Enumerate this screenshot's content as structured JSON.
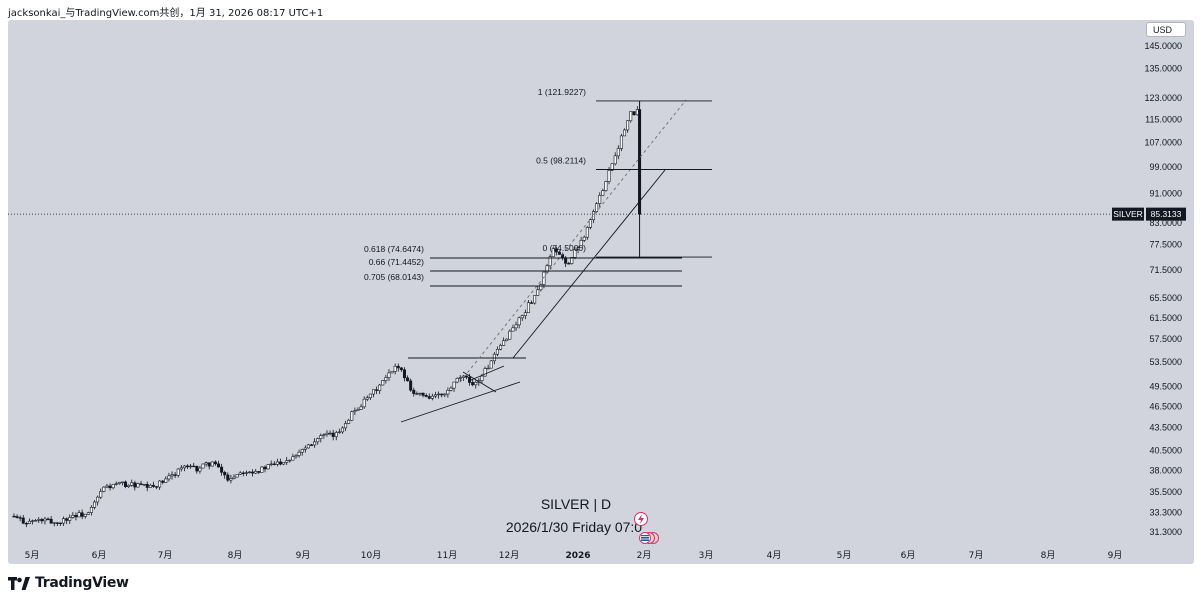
{
  "header": {
    "text": "jacksonkai_与TradingView.com共创，1月 31, 2026 08:17 UTC+1"
  },
  "currency": "USD",
  "brand": {
    "name": "TradingView"
  },
  "symbol_label": "SILVER",
  "current_price": "85.3133",
  "watermark": {
    "title": "SILVER | D",
    "datetime": "2026/1/30 Friday 07:0"
  },
  "colors": {
    "panel": "#d1d4dc",
    "candle_up": "#ffffff",
    "candle_down": "#131722",
    "line": "#131722",
    "fib": "#131722"
  },
  "chart_data": {
    "type": "candlestick",
    "title": "SILVER | D",
    "y_scale": "log",
    "y_ticks": [
      "145.0000",
      "135.0000",
      "123.0000",
      "115.0000",
      "107.0000",
      "99.0000",
      "91.0000",
      "83.0000",
      "77.5000",
      "71.5000",
      "65.5000",
      "61.5000",
      "57.5000",
      "53.5000",
      "49.5000",
      "46.5000",
      "43.5000",
      "40.5000",
      "38.0000",
      "35.5000",
      "33.3000",
      "31.3000"
    ],
    "x_ticks": [
      "5月",
      "6月",
      "7月",
      "8月",
      "9月",
      "10月",
      "11月",
      "12月",
      "2026",
      "2月",
      "3月",
      "4月",
      "5月",
      "6月",
      "7月",
      "8月",
      "9月"
    ],
    "fib_levels": [
      {
        "label": "1 (121.9227)",
        "value": 121.9227
      },
      {
        "label": "0.5 (98.2114)",
        "value": 98.2114
      },
      {
        "label": "0 (74.5000)",
        "value": 74.5
      }
    ],
    "fib_extensions": [
      {
        "label": "0.618 (74.6474)",
        "value": 74.6474
      },
      {
        "label": "0.66 (71.4452)",
        "value": 71.4452
      },
      {
        "label": "0.705 (68.0143)",
        "value": 68.0143
      }
    ],
    "last_price": 85.3133,
    "closes": [
      {
        "d": "2025-04-21",
        "c": 32.9
      },
      {
        "d": "2025-04-28",
        "c": 32.3
      },
      {
        "d": "2025-05-05",
        "c": 32.5
      },
      {
        "d": "2025-05-12",
        "c": 32.2
      },
      {
        "d": "2025-05-19",
        "c": 33.0
      },
      {
        "d": "2025-05-26",
        "c": 33.1
      },
      {
        "d": "2025-06-02",
        "c": 36.0
      },
      {
        "d": "2025-06-09",
        "c": 36.4
      },
      {
        "d": "2025-06-16",
        "c": 36.3
      },
      {
        "d": "2025-06-23",
        "c": 36.0
      },
      {
        "d": "2025-06-30",
        "c": 36.8
      },
      {
        "d": "2025-07-07",
        "c": 38.4
      },
      {
        "d": "2025-07-14",
        "c": 38.2
      },
      {
        "d": "2025-07-21",
        "c": 39.0
      },
      {
        "d": "2025-07-28",
        "c": 37.0
      },
      {
        "d": "2025-08-04",
        "c": 38.0
      },
      {
        "d": "2025-08-11",
        "c": 38.0
      },
      {
        "d": "2025-08-18",
        "c": 38.8
      },
      {
        "d": "2025-08-25",
        "c": 39.5
      },
      {
        "d": "2025-09-01",
        "c": 41.0
      },
      {
        "d": "2025-09-08",
        "c": 42.3
      },
      {
        "d": "2025-09-15",
        "c": 42.5
      },
      {
        "d": "2025-09-22",
        "c": 45.5
      },
      {
        "d": "2025-09-29",
        "c": 47.6
      },
      {
        "d": "2025-10-06",
        "c": 50.2
      },
      {
        "d": "2025-10-13",
        "c": 53.0
      },
      {
        "d": "2025-10-20",
        "c": 48.5
      },
      {
        "d": "2025-10-27",
        "c": 48.0
      },
      {
        "d": "2025-11-03",
        "c": 48.2
      },
      {
        "d": "2025-11-10",
        "c": 51.0
      },
      {
        "d": "2025-11-17",
        "c": 50.0
      },
      {
        "d": "2025-11-24",
        "c": 53.5
      },
      {
        "d": "2025-12-01",
        "c": 58.0
      },
      {
        "d": "2025-12-08",
        "c": 62.0
      },
      {
        "d": "2025-12-15",
        "c": 67.0
      },
      {
        "d": "2025-12-22",
        "c": 76.0
      },
      {
        "d": "2025-12-29",
        "c": 73.0
      },
      {
        "d": "2026-01-05",
        "c": 80.0
      },
      {
        "d": "2026-01-12",
        "c": 90.0
      },
      {
        "d": "2026-01-19",
        "c": 103.0
      },
      {
        "d": "2026-01-26",
        "c": 117.0
      },
      {
        "d": "2026-01-29",
        "c": 118.0
      },
      {
        "d": "2026-01-30",
        "c": 85.3
      }
    ]
  }
}
